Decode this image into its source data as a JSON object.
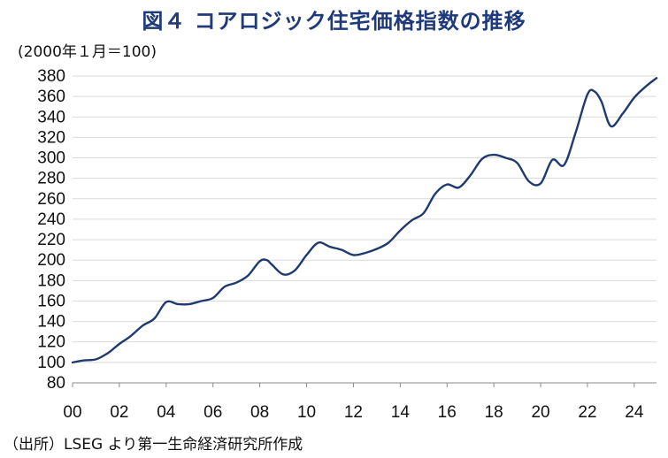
{
  "title": "図４ コアロジック住宅価格指数の推移",
  "unit_label": "(2000年１月＝100)",
  "source": "（出所）LSEG より第一生命経済研究所作成",
  "chart_data": {
    "type": "line",
    "title": "図４ コアロジック住宅価格指数の推移",
    "ylabel": "(2000年１月＝100)",
    "xlabel": "",
    "xlim": [
      2000,
      2024.95
    ],
    "ylim": [
      80,
      380
    ],
    "x_ticks": [
      2000,
      2002,
      2004,
      2006,
      2008,
      2010,
      2012,
      2014,
      2016,
      2018,
      2020,
      2022,
      2024
    ],
    "x_tick_labels": [
      "00",
      "02",
      "04",
      "06",
      "08",
      "10",
      "12",
      "14",
      "16",
      "18",
      "20",
      "22",
      "24"
    ],
    "y_ticks": [
      80,
      100,
      120,
      140,
      160,
      180,
      200,
      220,
      240,
      260,
      280,
      300,
      320,
      340,
      360,
      380
    ],
    "y_tick_labels": [
      "80",
      "100",
      "120",
      "140",
      "160",
      "180",
      "200",
      "220",
      "240",
      "260",
      "280",
      "300",
      "320",
      "340",
      "360",
      "380"
    ],
    "grid": "horizontal",
    "line_color": "#1f3a6e",
    "series": [
      {
        "x": [
          2000,
          2000.5,
          2001,
          2001.5,
          2002,
          2002.5,
          2003,
          2003.5,
          2004,
          2004.5,
          2005,
          2005.5,
          2006,
          2006.5,
          2007,
          2007.5,
          2008,
          2008.3,
          2008.5,
          2009,
          2009.5,
          2010,
          2010.5,
          2011,
          2011.5,
          2012,
          2012.5,
          2013,
          2013.5,
          2014,
          2014.5,
          2015,
          2015.5,
          2016,
          2016.5,
          2017,
          2017.5,
          2018,
          2018.5,
          2019,
          2019.5,
          2020,
          2020.5,
          2021,
          2021.5,
          2022,
          2022.3,
          2022.6,
          2023,
          2023.5,
          2024,
          2024.5,
          2024.95
        ],
        "values": [
          100,
          102,
          103,
          109,
          118,
          126,
          136,
          143,
          159,
          157,
          157,
          160,
          163,
          174,
          178,
          185,
          199,
          200,
          196,
          186,
          190,
          205,
          217,
          213,
          210,
          205,
          207,
          211,
          217,
          229,
          239,
          246,
          265,
          274,
          271,
          283,
          299,
          303,
          300,
          295,
          277,
          275,
          298,
          293,
          325,
          362,
          365,
          355,
          331,
          343,
          359,
          370,
          378
        ]
      }
    ]
  }
}
